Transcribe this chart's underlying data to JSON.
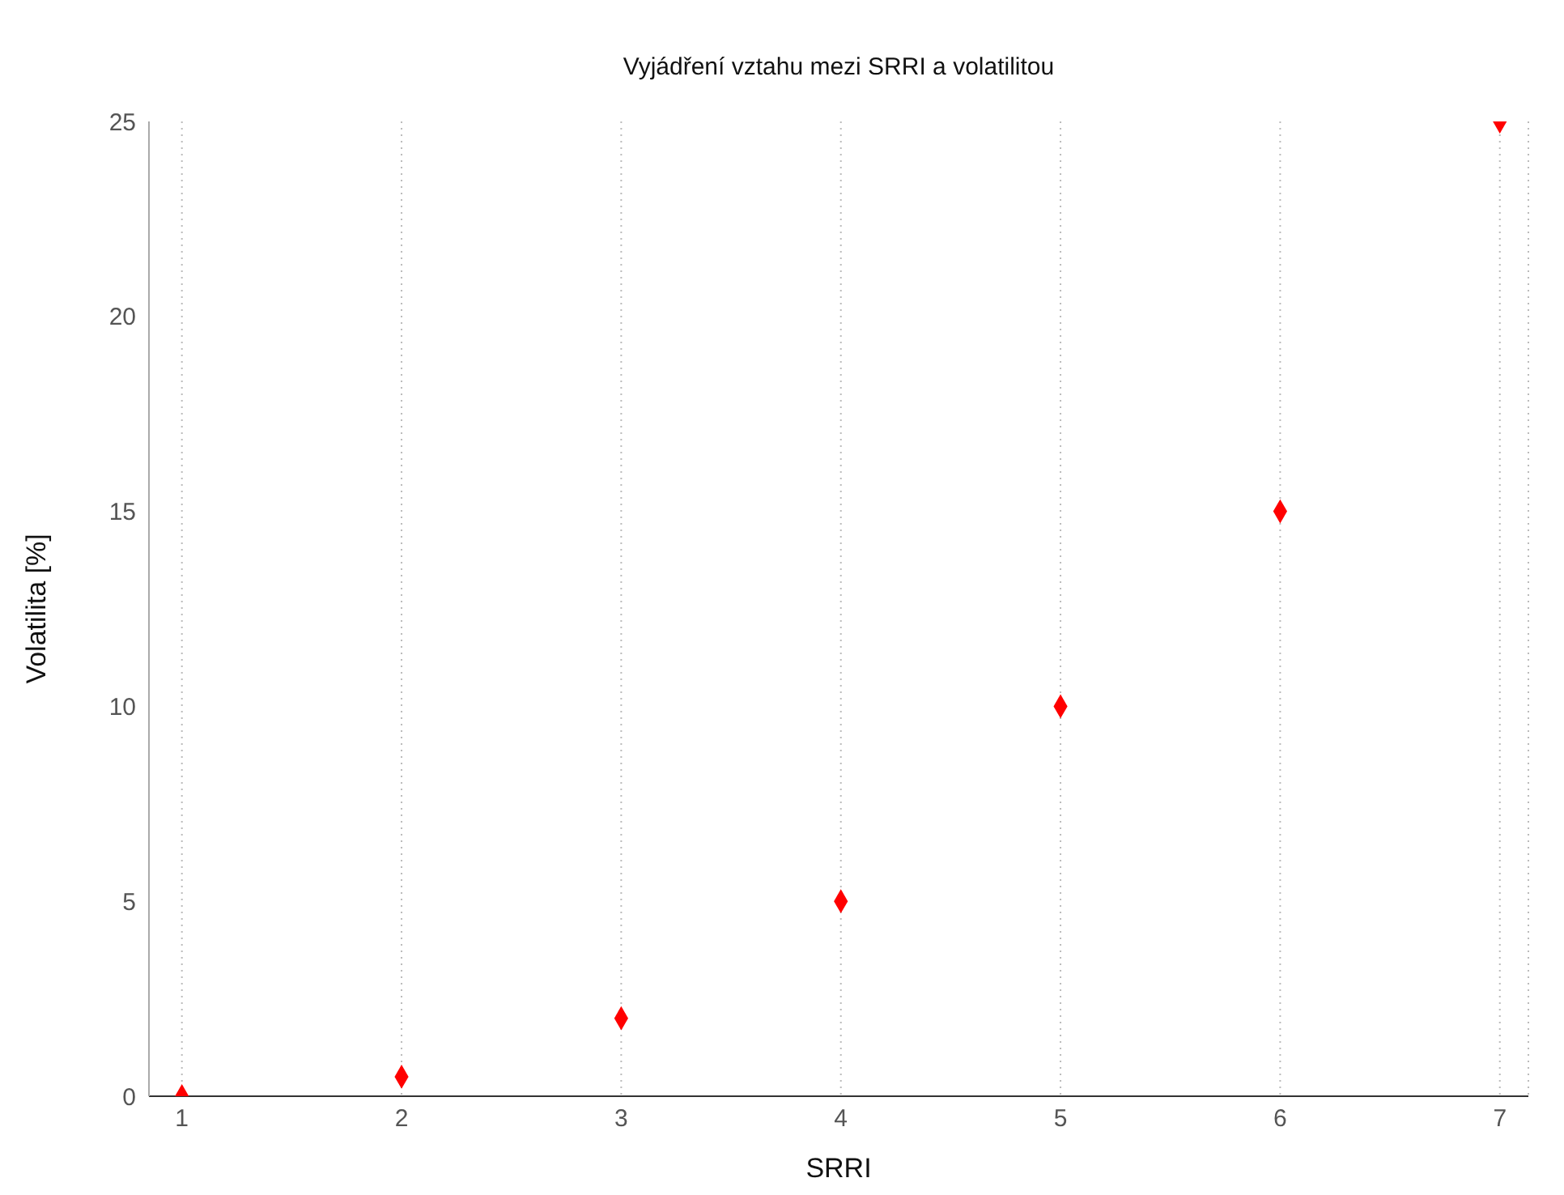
{
  "chart_data": {
    "type": "scatter",
    "title": "Vyjádření vztahu mezi SRRI a volatilitou",
    "xlabel": "SRRI",
    "ylabel": "Volatilita [%]",
    "x": [
      1,
      2,
      3,
      4,
      5,
      6,
      7
    ],
    "series": [
      {
        "color": "#ff0000",
        "values": [
          0,
          0.5,
          2,
          5,
          10,
          15,
          25
        ]
      }
    ],
    "xlim": [
      0.85,
      7.13
    ],
    "xticks": [
      1,
      2,
      3,
      4,
      5,
      6,
      7
    ],
    "ylim": [
      0,
      25
    ],
    "yticks": [
      0,
      5,
      10,
      15,
      20,
      25
    ],
    "grid": "x",
    "marker": "diamond",
    "legend": false
  }
}
